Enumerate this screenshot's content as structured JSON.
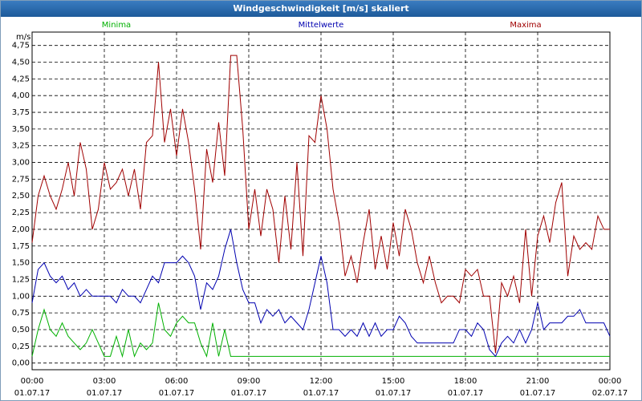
{
  "chart_data": {
    "type": "line",
    "title": "Windgeschwindigkeit [m/s] skaliert",
    "y_unit": "m/s",
    "x": [
      0,
      0.25,
      0.5,
      0.75,
      1,
      1.25,
      1.5,
      1.75,
      2,
      2.25,
      2.5,
      2.75,
      3,
      3.25,
      3.5,
      3.75,
      4,
      4.25,
      4.5,
      4.75,
      5,
      5.25,
      5.5,
      5.75,
      6,
      6.25,
      6.5,
      6.75,
      7,
      7.25,
      7.5,
      7.75,
      8,
      8.25,
      8.5,
      8.75,
      9,
      9.25,
      9.5,
      9.75,
      10,
      10.25,
      10.5,
      10.75,
      11,
      11.25,
      11.5,
      11.75,
      12,
      12.25,
      12.5,
      12.75,
      13,
      13.25,
      13.5,
      13.75,
      14,
      14.25,
      14.5,
      14.75,
      15,
      15.25,
      15.5,
      15.75,
      16,
      16.25,
      16.5,
      16.75,
      17,
      17.25,
      17.5,
      17.75,
      18,
      18.25,
      18.5,
      18.75,
      19,
      19.25,
      19.5,
      19.75,
      20,
      20.25,
      20.5,
      20.75,
      21,
      21.25,
      21.5,
      21.75,
      22,
      22.25,
      22.5,
      22.75,
      23,
      23.25,
      23.5,
      23.75,
      24
    ],
    "series": [
      {
        "name": "Minima",
        "color": "#00b000",
        "values": [
          0.1,
          0.5,
          0.8,
          0.5,
          0.4,
          0.6,
          0.4,
          0.3,
          0.2,
          0.3,
          0.5,
          0.3,
          0.1,
          0.1,
          0.4,
          0.1,
          0.5,
          0.1,
          0.3,
          0.2,
          0.3,
          0.9,
          0.5,
          0.4,
          0.6,
          0.7,
          0.6,
          0.6,
          0.3,
          0.1,
          0.6,
          0.1,
          0.5,
          0.1,
          0.1,
          0.1,
          0.1,
          0.1,
          0.1,
          0.1,
          0.1,
          0.1,
          0.1,
          0.1,
          0.1,
          0.1,
          0.1,
          0.1,
          0.1,
          0.1,
          0.1,
          0.1,
          0.1,
          0.1,
          0.1,
          0.1,
          0.1,
          0.1,
          0.1,
          0.1,
          0.1,
          0.1,
          0.1,
          0.1,
          0.1,
          0.1,
          0.1,
          0.1,
          0.1,
          0.1,
          0.1,
          0.1,
          0.1,
          0.1,
          0.1,
          0.1,
          0.1,
          0.1,
          0.1,
          0.1,
          0.1,
          0.1,
          0.1,
          0.1,
          0.1,
          0.1,
          0.1,
          0.1,
          0.1,
          0.1,
          0.1,
          0.1,
          0.1,
          0.1,
          0.1,
          0.1,
          0.1
        ]
      },
      {
        "name": "Mittelwerte",
        "color": "#0000b0",
        "values": [
          0.9,
          1.4,
          1.5,
          1.3,
          1.2,
          1.3,
          1.1,
          1.2,
          1.0,
          1.1,
          1.0,
          1.0,
          1.0,
          1.0,
          0.9,
          1.1,
          1.0,
          1.0,
          0.9,
          1.1,
          1.3,
          1.2,
          1.5,
          1.5,
          1.5,
          1.6,
          1.5,
          1.3,
          0.8,
          1.2,
          1.1,
          1.3,
          1.7,
          2.0,
          1.5,
          1.1,
          0.9,
          0.9,
          0.6,
          0.8,
          0.7,
          0.8,
          0.6,
          0.7,
          0.6,
          0.5,
          0.8,
          1.2,
          1.6,
          1.2,
          0.5,
          0.5,
          0.4,
          0.5,
          0.4,
          0.6,
          0.4,
          0.6,
          0.4,
          0.5,
          0.5,
          0.7,
          0.6,
          0.4,
          0.3,
          0.3,
          0.3,
          0.3,
          0.3,
          0.3,
          0.3,
          0.5,
          0.5,
          0.4,
          0.6,
          0.5,
          0.2,
          0.1,
          0.3,
          0.4,
          0.3,
          0.5,
          0.3,
          0.5,
          0.9,
          0.5,
          0.6,
          0.6,
          0.6,
          0.7,
          0.7,
          0.8,
          0.6,
          0.6,
          0.6,
          0.6,
          0.4
        ]
      },
      {
        "name": "Maxima",
        "color": "#a00000",
        "values": [
          1.8,
          2.5,
          2.8,
          2.5,
          2.3,
          2.6,
          3.0,
          2.5,
          3.3,
          2.9,
          2.0,
          2.3,
          3.0,
          2.6,
          2.7,
          2.9,
          2.5,
          2.9,
          2.3,
          3.3,
          3.4,
          4.5,
          3.3,
          3.8,
          3.1,
          3.8,
          3.3,
          2.6,
          1.7,
          3.2,
          2.7,
          3.6,
          2.8,
          4.6,
          4.6,
          3.5,
          2.0,
          2.6,
          1.9,
          2.6,
          2.3,
          1.5,
          2.5,
          1.7,
          3.0,
          1.6,
          3.4,
          3.3,
          4.0,
          3.5,
          2.6,
          2.1,
          1.3,
          1.6,
          1.2,
          1.8,
          2.3,
          1.4,
          1.9,
          1.4,
          2.1,
          1.6,
          2.3,
          2.0,
          1.5,
          1.2,
          1.6,
          1.2,
          0.9,
          1.0,
          1.0,
          0.9,
          1.4,
          1.3,
          1.4,
          1.0,
          1.0,
          0.15,
          1.2,
          1.0,
          1.3,
          0.9,
          2.0,
          1.0,
          1.9,
          2.2,
          1.8,
          2.4,
          2.7,
          1.3,
          1.9,
          1.7,
          1.8,
          1.7,
          2.2,
          2.0,
          2.0
        ]
      }
    ],
    "xlim": [
      0,
      24
    ],
    "xticks": [
      {
        "value": 0,
        "label": "00:00"
      },
      {
        "value": 3,
        "label": "03:00"
      },
      {
        "value": 6,
        "label": "06:00"
      },
      {
        "value": 9,
        "label": "09:00"
      },
      {
        "value": 12,
        "label": "12:00"
      },
      {
        "value": 15,
        "label": "15:00"
      },
      {
        "value": 18,
        "label": "18:00"
      },
      {
        "value": 21,
        "label": "21:00"
      },
      {
        "value": 24,
        "label": "00:00"
      }
    ],
    "xtick_dates": [
      "01.07.17",
      "01.07.17",
      "01.07.17",
      "01.07.17",
      "01.07.17",
      "01.07.17",
      "01.07.17",
      "01.07.17",
      "02.07.17"
    ],
    "ylim": [
      -0.1,
      4.95
    ],
    "yticks": [
      {
        "value": 0,
        "label": "0,00"
      },
      {
        "value": 0.25,
        "label": "0,25"
      },
      {
        "value": 0.5,
        "label": "0,50"
      },
      {
        "value": 0.75,
        "label": "0,75"
      },
      {
        "value": 1,
        "label": "1,00"
      },
      {
        "value": 1.25,
        "label": "1,25"
      },
      {
        "value": 1.5,
        "label": "1,50"
      },
      {
        "value": 1.75,
        "label": "1,75"
      },
      {
        "value": 2,
        "label": "2,00"
      },
      {
        "value": 2.25,
        "label": "2,25"
      },
      {
        "value": 2.5,
        "label": "2,50"
      },
      {
        "value": 2.75,
        "label": "2,75"
      },
      {
        "value": 3,
        "label": "3,00"
      },
      {
        "value": 3.25,
        "label": "3,25"
      },
      {
        "value": 3.5,
        "label": "3,50"
      },
      {
        "value": 3.75,
        "label": "3,75"
      },
      {
        "value": 4,
        "label": "4,00"
      },
      {
        "value": 4.25,
        "label": "4,25"
      },
      {
        "value": 4.5,
        "label": "4,50"
      },
      {
        "value": 4.75,
        "label": "4,75"
      }
    ],
    "grid": true
  }
}
